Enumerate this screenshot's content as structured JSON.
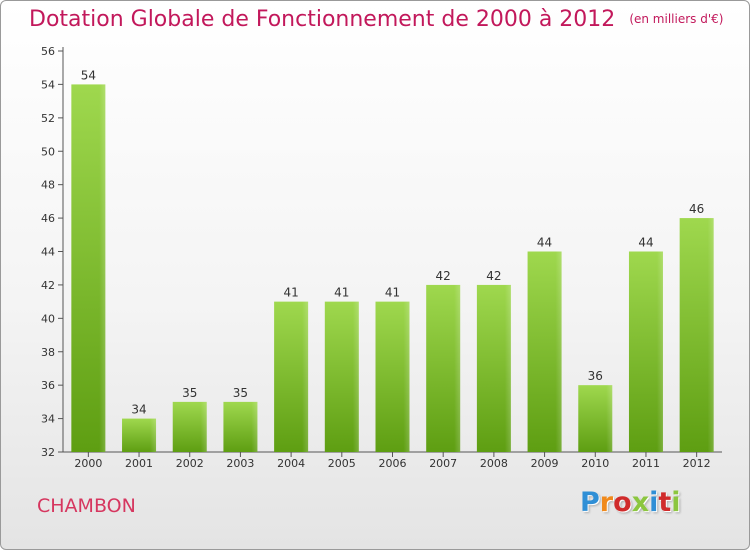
{
  "header": {
    "title": "Dotation Globale de Fonctionnement de 2000 à 2012",
    "subtitle": "(en milliers d'€)"
  },
  "footer": {
    "town": "CHAMBON",
    "brand": "Proxiti"
  },
  "colors": {
    "title": "#c2185b",
    "bar_top": "#9fd84e",
    "bar_bottom": "#5e9e12",
    "town": "#d6365f"
  },
  "chart_data": {
    "type": "bar",
    "categories": [
      "2000",
      "2001",
      "2002",
      "2003",
      "2004",
      "2005",
      "2006",
      "2007",
      "2008",
      "2009",
      "2010",
      "2011",
      "2012"
    ],
    "values": [
      54,
      34,
      35,
      35,
      41,
      41,
      41,
      42,
      42,
      44,
      36,
      44,
      46
    ],
    "title": "Dotation Globale de Fonctionnement de 2000 à 2012",
    "subtitle": "(en milliers d'€)",
    "xlabel": "",
    "ylabel": "",
    "ylim": [
      32,
      56
    ],
    "yticks": [
      32,
      34,
      36,
      38,
      40,
      42,
      44,
      46,
      48,
      50,
      52,
      54,
      56
    ],
    "grid": false,
    "legend": "none"
  }
}
